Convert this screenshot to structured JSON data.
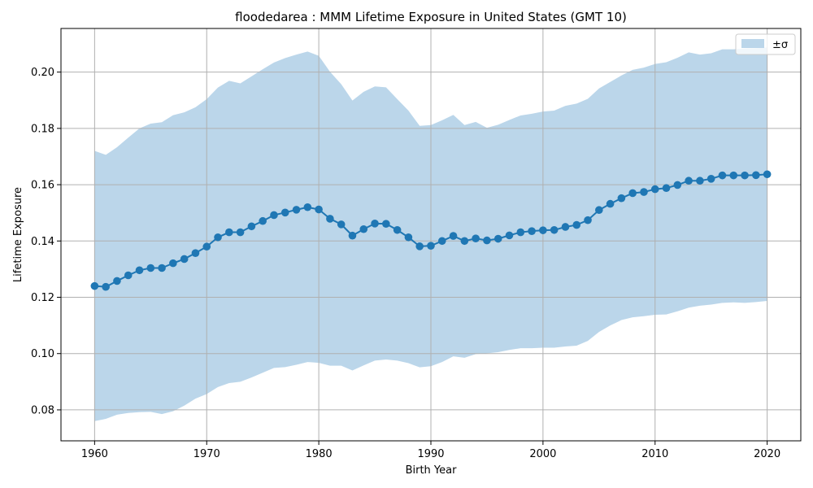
{
  "chart_data": {
    "type": "line",
    "title": "floodedarea : MMM Lifetime Exposure in United States (GMT 10)",
    "xlabel": "Birth Year",
    "ylabel": "Lifetime Exposure",
    "xlim": [
      1957,
      2023
    ],
    "ylim": [
      0.069,
      0.2155
    ],
    "xticks": [
      1960,
      1970,
      1980,
      1990,
      2000,
      2010,
      2020
    ],
    "yticks": [
      0.08,
      0.1,
      0.12,
      0.14,
      0.16,
      0.18,
      0.2
    ],
    "grid": true,
    "legend_position": "top-right",
    "x": [
      1960,
      1961,
      1962,
      1963,
      1964,
      1965,
      1966,
      1967,
      1968,
      1969,
      1970,
      1971,
      1972,
      1973,
      1974,
      1975,
      1976,
      1977,
      1978,
      1979,
      1980,
      1981,
      1982,
      1983,
      1984,
      1985,
      1986,
      1987,
      1988,
      1989,
      1990,
      1991,
      1992,
      1993,
      1994,
      1995,
      1996,
      1997,
      1998,
      1999,
      2000,
      2001,
      2002,
      2003,
      2004,
      2005,
      2006,
      2007,
      2008,
      2009,
      2010,
      2011,
      2012,
      2013,
      2014,
      2015,
      2016,
      2017,
      2018,
      2019,
      2020
    ],
    "series": [
      {
        "values": [
          0.124,
          0.1237,
          0.1258,
          0.1278,
          0.1296,
          0.1304,
          0.1304,
          0.1321,
          0.1336,
          0.1357,
          0.138,
          0.1413,
          0.1431,
          0.1431,
          0.1452,
          0.1471,
          0.1492,
          0.1501,
          0.1511,
          0.152,
          0.1512,
          0.1479,
          0.1459,
          0.1419,
          0.1442,
          0.1462,
          0.1461,
          0.1439,
          0.1413,
          0.1381,
          0.1383,
          0.14,
          0.1418,
          0.14,
          0.1409,
          0.1402,
          0.1408,
          0.142,
          0.1431,
          0.1435,
          0.1438,
          0.1439,
          0.145,
          0.1457,
          0.1474,
          0.151,
          0.1532,
          0.1552,
          0.157,
          0.1574,
          0.1584,
          0.1588,
          0.1599,
          0.1614,
          0.1614,
          0.1621,
          0.1633,
          0.1633,
          0.1633,
          0.1634,
          0.1637
        ],
        "color": "#1f77b4"
      }
    ],
    "band": {
      "name": "±σ",
      "color": "#bbd6ea",
      "upper": [
        0.172,
        0.1706,
        0.1733,
        0.1767,
        0.18,
        0.1817,
        0.1822,
        0.1847,
        0.1857,
        0.1875,
        0.1904,
        0.1945,
        0.1969,
        0.196,
        0.1985,
        0.201,
        0.2034,
        0.205,
        0.2062,
        0.2073,
        0.2058,
        0.2001,
        0.1957,
        0.1899,
        0.193,
        0.1949,
        0.1946,
        0.1904,
        0.1863,
        0.1809,
        0.1812,
        0.1829,
        0.1848,
        0.1812,
        0.1823,
        0.1802,
        0.1813,
        0.183,
        0.1846,
        0.1852,
        0.186,
        0.1863,
        0.188,
        0.1888,
        0.1905,
        0.1942,
        0.1965,
        0.1988,
        0.2008,
        0.2016,
        0.2029,
        0.2035,
        0.2051,
        0.207,
        0.2062,
        0.2067,
        0.2081,
        0.2081,
        0.2084,
        0.2085,
        0.2088
      ],
      "lower": [
        0.076,
        0.0768,
        0.0783,
        0.0789,
        0.0792,
        0.0793,
        0.0785,
        0.0795,
        0.0815,
        0.084,
        0.0856,
        0.0881,
        0.0895,
        0.09,
        0.0915,
        0.0932,
        0.0949,
        0.0952,
        0.096,
        0.097,
        0.0967,
        0.0957,
        0.0957,
        0.094,
        0.0958,
        0.0975,
        0.0979,
        0.0975,
        0.0966,
        0.0951,
        0.0955,
        0.097,
        0.099,
        0.0985,
        0.0998,
        0.1001,
        0.1005,
        0.1013,
        0.1019,
        0.1019,
        0.1021,
        0.1021,
        0.1025,
        0.1028,
        0.1045,
        0.1077,
        0.11,
        0.1119,
        0.1129,
        0.1133,
        0.1138,
        0.1139,
        0.115,
        0.1163,
        0.117,
        0.1174,
        0.118,
        0.1182,
        0.118,
        0.1183,
        0.1187
      ]
    }
  }
}
